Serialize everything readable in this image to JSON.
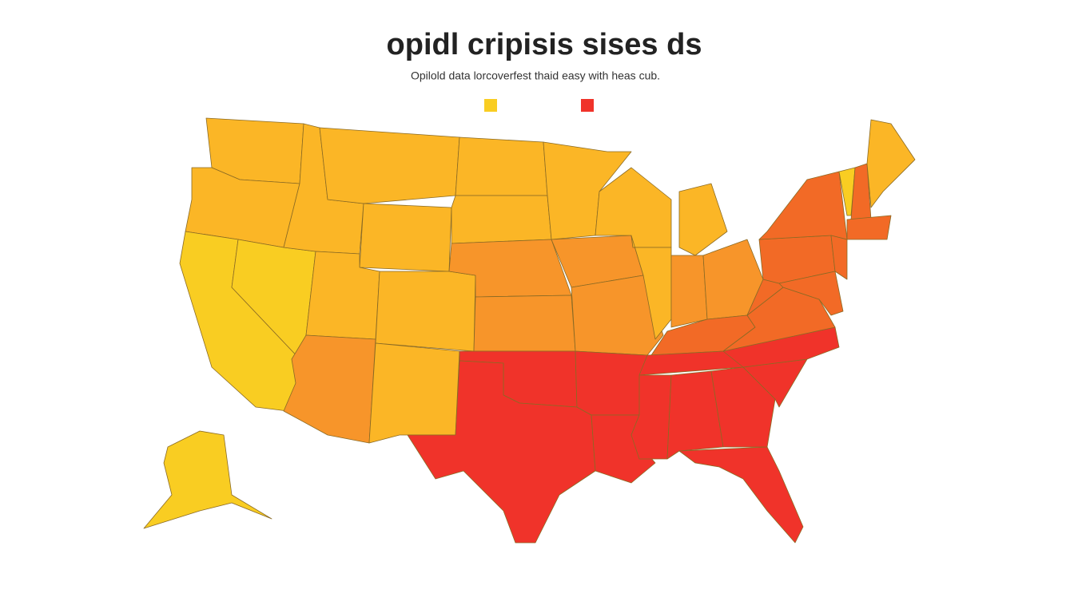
{
  "header": {
    "title": "opidl cripisis sises ds",
    "subtitle": "Opilold data lorcoverfest thaid easy with heas cub."
  },
  "legend": {
    "colors": [
      "#f9cd22",
      "#f0332a"
    ]
  }
}
